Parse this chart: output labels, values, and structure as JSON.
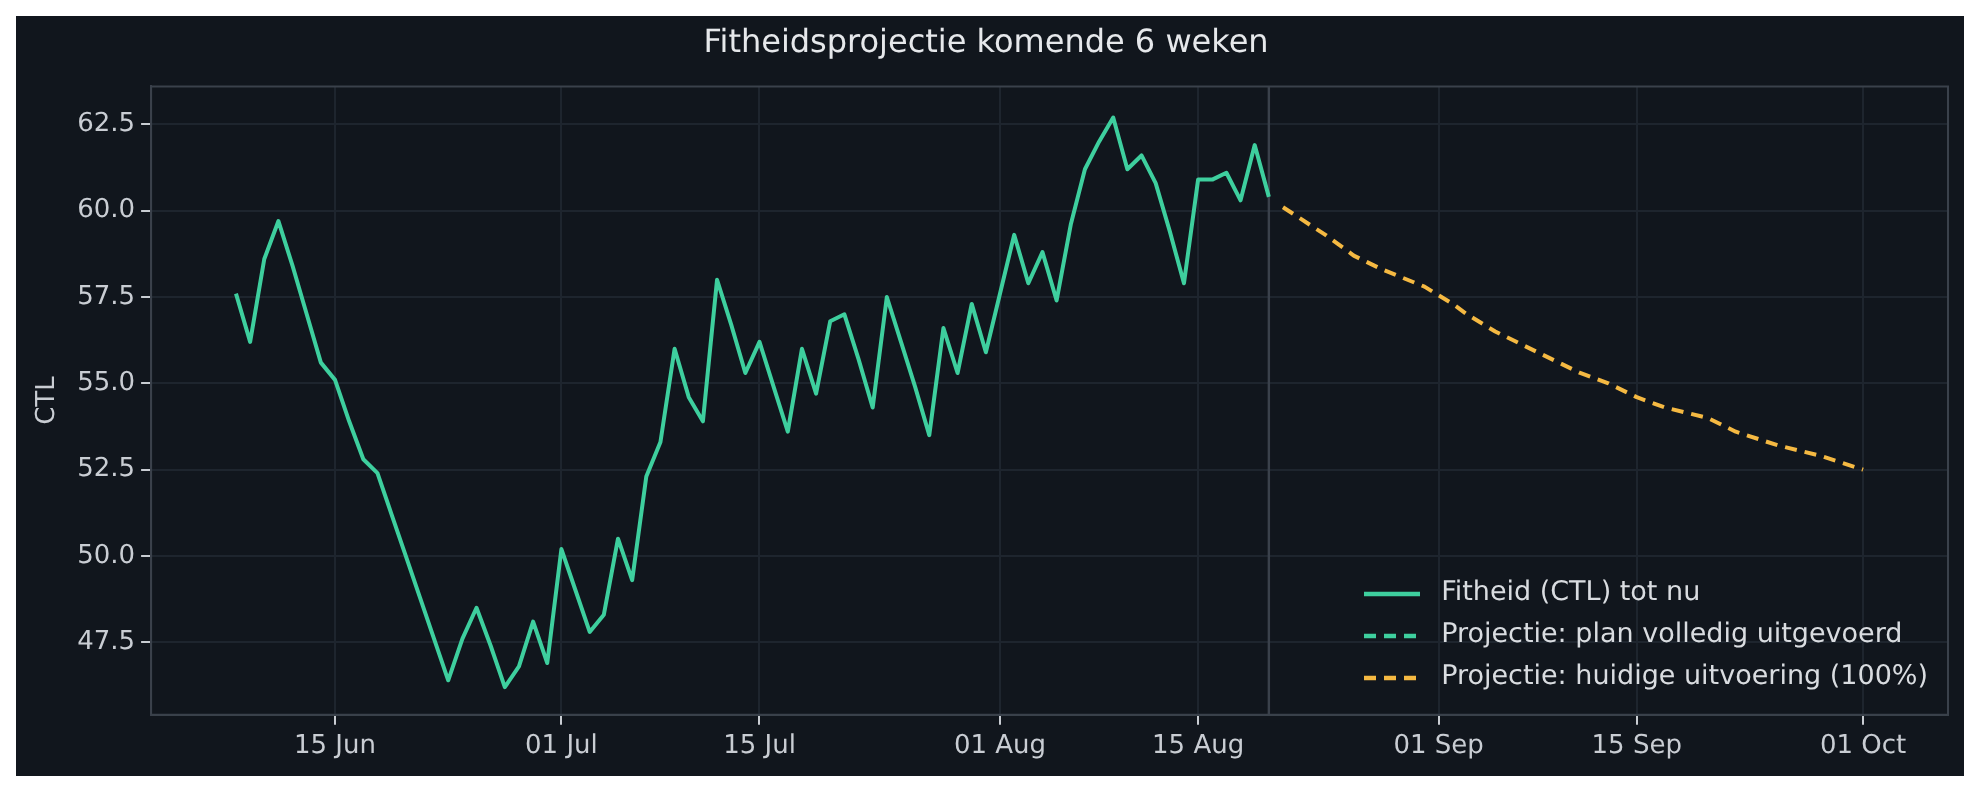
{
  "chart_data": {
    "type": "line",
    "title": "Fitheidsprojectie komende 6 weken",
    "ylabel": "CTL",
    "xlim": [
      "--06-02",
      "--10-07"
    ],
    "xticks": [
      {
        "value": "--06-15",
        "label": "15 Jun"
      },
      {
        "value": "--07-01",
        "label": "01 Jul"
      },
      {
        "value": "--07-15",
        "label": "15 Jul"
      },
      {
        "value": "--08-01",
        "label": "01 Aug"
      },
      {
        "value": "--08-15",
        "label": "15 Aug"
      },
      {
        "value": "--09-01",
        "label": "01 Sep"
      },
      {
        "value": "--09-15",
        "label": "15 Sep"
      },
      {
        "value": "--10-01",
        "label": "01 Oct"
      }
    ],
    "ylim": [
      45.4,
      63.6
    ],
    "yticks": [
      47.5,
      {
        "value": 50,
        "label": "50.0"
      },
      52.5,
      {
        "value": 55,
        "label": "55.0"
      },
      57.5,
      {
        "value": 60,
        "label": "60.0"
      },
      62.5
    ],
    "grid": true,
    "legend": "bottom right",
    "ref_lines": [
      {
        "axis": "x",
        "value": "--08-20",
        "color": "#3a414b"
      }
    ],
    "series": [
      {
        "name": "Fitheid (CTL) tot nu",
        "color": "#3ecf9e",
        "line_style": "solid",
        "x": [
          "--06-08",
          "--06-09",
          "--06-10",
          "--06-11",
          "--06-12",
          "--06-13",
          "--06-14",
          "--06-15",
          "--06-16",
          "--06-17",
          "--06-18",
          "--06-19",
          "--06-20",
          "--06-21",
          "--06-22",
          "--06-23",
          "--06-24",
          "--06-25",
          "--06-26",
          "--06-27",
          "--06-28",
          "--06-29",
          "--06-30",
          "--07-01",
          "--07-02",
          "--07-03",
          "--07-04",
          "--07-05",
          "--07-06",
          "--07-07",
          "--07-08",
          "--07-09",
          "--07-10",
          "--07-11",
          "--07-12",
          "--07-13",
          "--07-14",
          "--07-15",
          "--07-16",
          "--07-17",
          "--07-18",
          "--07-19",
          "--07-20",
          "--07-21",
          "--07-22",
          "--07-23",
          "--07-24",
          "--07-25",
          "--07-26",
          "--07-27",
          "--07-28",
          "--07-29",
          "--07-30",
          "--07-31",
          "--08-01",
          "--08-02",
          "--08-03",
          "--08-04",
          "--08-05",
          "--08-06",
          "--08-07",
          "--08-08",
          "--08-09",
          "--08-10",
          "--08-11",
          "--08-12",
          "--08-13",
          "--08-14",
          "--08-15",
          "--08-16",
          "--08-17",
          "--08-18",
          "--08-19",
          "--08-20"
        ],
        "values": [
          57.6,
          56.2,
          58.6,
          59.7,
          58.4,
          57.0,
          55.6,
          55.1,
          53.9,
          52.8,
          52.4,
          51.2,
          50.0,
          48.8,
          47.6,
          46.4,
          47.6,
          48.5,
          47.4,
          46.2,
          46.8,
          48.1,
          46.9,
          50.2,
          49.0,
          47.8,
          48.3,
          50.5,
          49.3,
          52.3,
          53.3,
          56.0,
          54.6,
          53.9,
          58.0,
          56.7,
          55.3,
          56.2,
          54.9,
          53.6,
          56.0,
          54.7,
          56.8,
          57.0,
          55.7,
          54.3,
          57.5,
          56.2,
          54.9,
          53.5,
          56.6,
          55.3,
          57.3,
          55.9,
          57.6,
          59.3,
          57.9,
          58.8,
          57.4,
          59.6,
          61.2,
          62.0,
          62.7,
          61.2,
          61.6,
          60.8,
          59.4,
          57.9,
          60.9,
          60.9,
          61.1,
          60.3,
          61.9,
          60.4
        ]
      },
      {
        "name": "Projectie: plan volledig uitgevoerd",
        "color": "#3ecf9e",
        "line_style": "dashed"
      },
      {
        "name": "Projectie: huidige uitvoering (100%)",
        "color": "#f5b942",
        "line_style": "dashed",
        "x": [
          "--08-21",
          "--08-24",
          "--08-26",
          "--08-28",
          "--08-31",
          "--09-02",
          "--09-03",
          "--09-05",
          "--09-08",
          "--09-11",
          "--09-13",
          "--09-15",
          "--09-17",
          "--09-20",
          "--09-22",
          "--09-25",
          "--09-28",
          "--10-01"
        ],
        "values": [
          60.1,
          59.3,
          58.7,
          58.3,
          57.8,
          57.3,
          57.0,
          56.5,
          55.9,
          55.3,
          55.0,
          54.6,
          54.3,
          54.0,
          53.6,
          53.2,
          52.9,
          52.5
        ]
      }
    ]
  }
}
